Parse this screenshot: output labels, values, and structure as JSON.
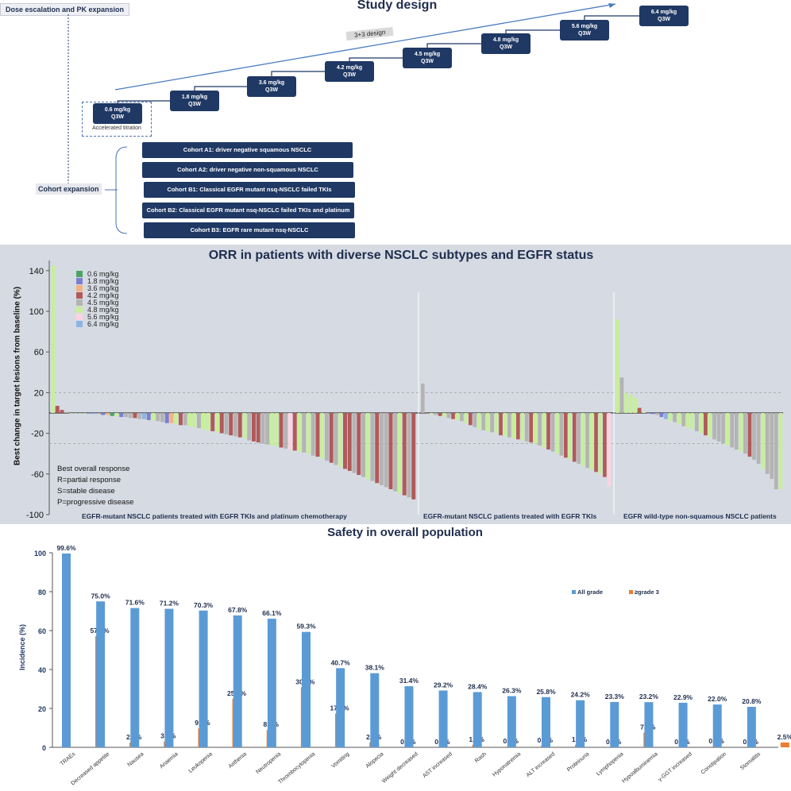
{
  "study_design": {
    "title": "Study design",
    "dose_label": "Dose escalation and PK expansion",
    "design_tag": "3+3 design",
    "accelerated": "Accelerated titration",
    "doses": [
      "0.6 mg/kg\nQ3W",
      "1.8 mg/kg\nQ3W",
      "3.6 mg/kg\nQ3W",
      "4.2 mg/kg\nQ3W",
      "4.5 mg/kg\nQ3W",
      "4.8 mg/kg\nQ3W",
      "5.6 mg/kg\nQ3W",
      "6.4 mg/kg\nQ3W"
    ],
    "expansion_label": "Cohort expansion",
    "cohorts": [
      "Cohort A1: driver negative squamous NSCLC",
      "Cohort A2: driver negative non-squamous NSCLC",
      "Cohort B1: Classical EGFR mutant nsq-NSCLC failed TKIs",
      "Cohort B2: Classical EGFR mutant nsq-NSCLC failed TKIs and platinum",
      "Cohort B3: EGFR rare mutant nsq-NSCLC"
    ]
  },
  "chart_data": [
    {
      "type": "bar",
      "title": "ORR in patients with diverse NSCLC subtypes and EGFR status",
      "ylabel": "Best change in target lesions from baseline (%)",
      "ylim": [
        -100,
        150
      ],
      "yticks": [
        -100,
        -60,
        -20,
        20,
        60,
        100,
        140
      ],
      "reference_lines": [
        20,
        -30
      ],
      "legend": [
        {
          "name": "0.6 mg/kg",
          "color": "#4aa564"
        },
        {
          "name": "1.8 mg/kg",
          "color": "#7b7fcf"
        },
        {
          "name": "3.6 mg/kg",
          "color": "#f4b183"
        },
        {
          "name": "4.2 mg/kg",
          "color": "#b15a5a"
        },
        {
          "name": "4.5 mg/kg",
          "color": "#b4b4b4"
        },
        {
          "name": "4.8 mg/kg",
          "color": "#c7ef9b"
        },
        {
          "name": "5.6 mg/kg",
          "color": "#fbd3e0"
        },
        {
          "name": "6.4 mg/kg",
          "color": "#8eb4e3"
        }
      ],
      "response_note": [
        "Best overall response",
        "R=partial response",
        "S=stable disease",
        "P=progressive disease"
      ],
      "groups": [
        {
          "label": "EGFR-mutant NSCLC patients treated with EGFR TKIs and platinum chemotherapy",
          "values": [
            145,
            7,
            3,
            1,
            0,
            0,
            0,
            0,
            0,
            -1,
            -1,
            -2,
            -2,
            -3,
            -3,
            -4,
            -4,
            -5,
            -5,
            -6,
            -6,
            -7,
            -7,
            -8,
            -9,
            -10,
            -10,
            -11,
            -12,
            -12,
            -13,
            -14,
            -15,
            -16,
            -17,
            -18,
            -19,
            -20,
            -21,
            -22,
            -23,
            -24,
            -25,
            -27,
            -28,
            -29,
            -30,
            -31,
            -32,
            -33,
            -34,
            -35,
            -36,
            -37,
            -38,
            -39,
            -40,
            -42,
            -43,
            -45,
            -47,
            -49,
            -51,
            -53,
            -55,
            -57,
            -59,
            -61,
            -63,
            -65,
            -67,
            -69,
            -71,
            -73,
            -75,
            -77,
            -79,
            -81,
            -83,
            -85
          ],
          "doses": [
            5,
            3,
            3,
            4,
            5,
            5,
            5,
            5,
            1,
            7,
            4,
            1,
            2,
            0,
            5,
            1,
            4,
            4,
            3,
            4,
            7,
            1,
            5,
            4,
            4,
            1,
            2,
            5,
            3,
            4,
            5,
            5,
            4,
            5,
            5,
            3,
            5,
            3,
            4,
            3,
            4,
            3,
            5,
            4,
            3,
            3,
            4,
            4,
            5,
            5,
            3,
            4,
            6,
            3,
            5,
            4,
            5,
            4,
            3,
            5,
            4,
            3,
            4,
            5,
            3,
            3,
            4,
            3,
            4,
            5,
            4,
            3,
            4,
            4,
            3,
            4,
            5,
            3,
            4,
            3
          ]
        },
        {
          "label": "EGFR-mutant NSCLC patients treated with EGFR TKIs",
          "values": [
            29,
            0,
            -1,
            -2,
            -3,
            -4,
            -5,
            -6,
            -7,
            -8,
            -10,
            -12,
            -14,
            -16,
            -17,
            -18,
            -19,
            -20,
            -22,
            -23,
            -24,
            -25,
            -26,
            -27,
            -28,
            -29,
            -30,
            -32,
            -34,
            -36,
            -38,
            -40,
            -42,
            -44,
            -46,
            -48,
            -50,
            -52,
            -54,
            -56,
            -58,
            -60,
            -63,
            -72
          ],
          "doses": [
            4,
            3,
            5,
            4,
            3,
            5,
            4,
            3,
            5,
            4,
            5,
            3,
            4,
            5,
            4,
            5,
            4,
            5,
            3,
            5,
            4,
            5,
            3,
            5,
            4,
            3,
            5,
            4,
            5,
            3,
            4,
            5,
            4,
            3,
            5,
            3,
            4,
            5,
            4,
            5,
            3,
            5,
            3,
            6
          ]
        },
        {
          "label": "EGFR wild-type non-squamous NSCLC patients",
          "values": [
            92,
            35,
            20,
            18,
            15,
            5,
            1,
            0,
            -1,
            -2,
            -4,
            -6,
            -8,
            -9,
            -11,
            -13,
            -14,
            -16,
            -18,
            -20,
            -22,
            -24,
            -26,
            -28,
            -30,
            -32,
            -34,
            -36,
            -38,
            -40,
            -43,
            -46,
            -50,
            -55,
            -60,
            -65,
            -75,
            -75
          ],
          "doses": [
            5,
            4,
            5,
            5,
            5,
            3,
            5,
            1,
            1,
            4,
            1,
            7,
            5,
            4,
            5,
            4,
            5,
            5,
            4,
            5,
            3,
            5,
            4,
            4,
            4,
            5,
            4,
            4,
            5,
            4,
            3,
            4,
            4,
            5,
            4,
            4,
            4,
            5
          ]
        }
      ]
    },
    {
      "type": "bar",
      "title": "Safety in overall population",
      "ylabel": "Incidence (%)",
      "ylim": [
        0,
        100
      ],
      "yticks": [
        0,
        20,
        40,
        60,
        80,
        100
      ],
      "legend_placement": "top-right",
      "categories": [
        "TRAEs",
        "Decreased appetite",
        "Nausea",
        "Anaemia",
        "Leukopenia",
        "Asthenia",
        "Neutropenia",
        "Thrombocytopenia",
        "Vomiting",
        "Alopecia",
        "Weight decreased",
        "AST increased",
        "Rash",
        "Hyponatremia",
        "ALT increased",
        "Proteinuria",
        "Lymphopenia",
        "Hypoalbuminemia",
        "γ-GGT increased",
        "Constipation",
        "Stomatitis"
      ],
      "series": [
        {
          "name": "All grade",
          "color": "#5b9bd5",
          "values": [
            99.6,
            75.0,
            71.6,
            71.2,
            70.3,
            67.8,
            66.1,
            59.3,
            40.7,
            38.1,
            31.4,
            29.2,
            28.4,
            26.3,
            25.8,
            24.2,
            23.3,
            23.2,
            22.9,
            22.0,
            20.8
          ],
          "labels": [
            "99.6%",
            "75.0%",
            "71.6%",
            "71.2%",
            "70.3%",
            "67.8%",
            "66.1%",
            "59.3%",
            "40.7%",
            "38.1%",
            "31.4%",
            "29.2%",
            "28.4%",
            "26.3%",
            "25.8%",
            "24.2%",
            "23.3%",
            "23.2%",
            "22.9%",
            "22.0%",
            "20.8%"
          ]
        },
        {
          "name": "≥grade 3",
          "color": "#ed7d31",
          "values": [
            57.2,
            2.5,
            3.0,
            9.7,
            25.0,
            8.9,
            30.9,
            17.4,
            2.5,
            0.0,
            0.0,
            1.3,
            0.4,
            0.8,
            1.3,
            0.0,
            7.6,
            0.0,
            0.4,
            0.0,
            2.5
          ],
          "labels": [
            "57.2%",
            "2.5%",
            "3.0%",
            "9.7%",
            "25.0%",
            "8.9%",
            "30.9%",
            "17.4%",
            "2.5%",
            "0.0%",
            "0.0%",
            "1.3%",
            "0.4%",
            "0.8%",
            "1.3%",
            "0.0%",
            "7.6%",
            "0.0%",
            "0.4%",
            "0.0%",
            "2.5%"
          ]
        }
      ]
    }
  ]
}
